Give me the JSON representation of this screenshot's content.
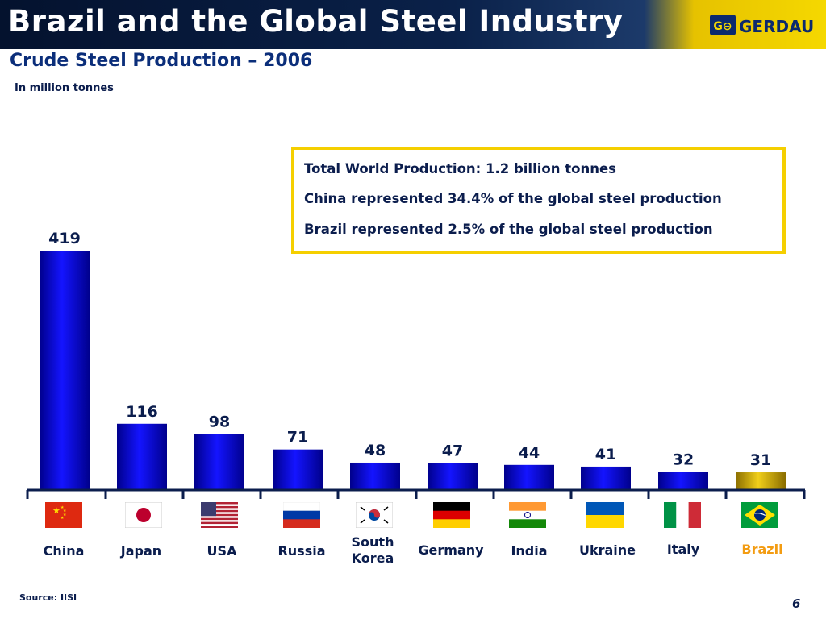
{
  "header": {
    "title": "Brazil and the Global Steel Industry",
    "logo_text": "GERDAU",
    "logo_mark": "G⊖"
  },
  "subtitle": "Crude Steel Production – 2006",
  "unit_note": "In million tonnes",
  "info_box": [
    "Total World Production: 1.2 billion tonnes",
    "China represented 34.4% of the global steel production",
    "Brazil represented 2.5% of the global steel production"
  ],
  "chart_data": {
    "type": "bar",
    "categories": [
      "China",
      "Japan",
      "USA",
      "Russia",
      "South Korea",
      "Germany",
      "India",
      "Ukraine",
      "Italy",
      "Brazil"
    ],
    "values": [
      419,
      116,
      98,
      71,
      48,
      47,
      44,
      41,
      32,
      31
    ],
    "data_labels": [
      "419",
      "116",
      "98",
      "71",
      "48",
      "47",
      "44",
      "41",
      "32",
      "31"
    ],
    "highlight": "Brazil",
    "colors": {
      "bar": "#0a14e6",
      "highlight": "#d4aa00",
      "highlight_label": "#f39c12",
      "label": "#0b1d4d"
    },
    "title": "",
    "xlabel": "",
    "ylabel": ""
  },
  "flags": [
    "china-flag-icon",
    "japan-flag-icon",
    "usa-flag-icon",
    "russia-flag-icon",
    "south-korea-flag-icon",
    "germany-flag-icon",
    "india-flag-icon",
    "ukraine-flag-icon",
    "italy-flag-icon",
    "brazil-flag-icon"
  ],
  "source": "Source:  IISI",
  "page_number": "6"
}
